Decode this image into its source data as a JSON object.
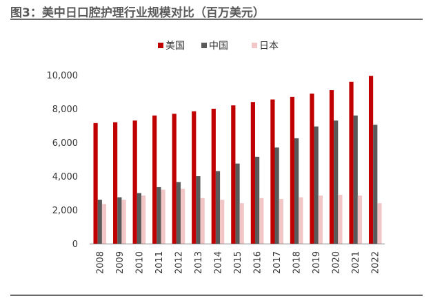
{
  "page": {
    "title": "图3：美中日口腔护理行业规模对比（百万美元）"
  },
  "colors": {
    "us": "#c00000",
    "china": "#595959",
    "japan": "#f2c6c6",
    "axis": "#7f7f7f"
  },
  "chart_data": {
    "type": "bar",
    "title": "图3：美中日口腔护理行业规模对比（百万美元）",
    "xlabel": "",
    "ylabel": "",
    "ylim": [
      0,
      10000
    ],
    "yticks": [
      0,
      2000,
      4000,
      6000,
      8000,
      10000
    ],
    "ytick_labels": [
      "0",
      "2,000",
      "4,000",
      "6,000",
      "8,000",
      "10,000"
    ],
    "legend_position": "top-center",
    "grid": false,
    "categories": [
      "2008",
      "2009",
      "2010",
      "2011",
      "2012",
      "2013",
      "2014",
      "2015",
      "2016",
      "2017",
      "2018",
      "2019",
      "2020",
      "2021",
      "2022"
    ],
    "series": [
      {
        "name": "美国",
        "color": "#c00000",
        "values": [
          7150,
          7200,
          7300,
          7600,
          7700,
          7850,
          8000,
          8200,
          8400,
          8550,
          8700,
          8900,
          9100,
          9600,
          9950
        ]
      },
      {
        "name": "中国",
        "color": "#595959",
        "values": [
          2600,
          2750,
          3000,
          3350,
          3650,
          4000,
          4300,
          4750,
          5150,
          5700,
          6250,
          6950,
          7300,
          7600,
          7050
        ]
      },
      {
        "name": "日本",
        "color": "#f2c6c6",
        "values": [
          2350,
          2600,
          2850,
          3200,
          3250,
          2700,
          2600,
          2400,
          2700,
          2650,
          2750,
          2850,
          2900,
          2850,
          2400
        ]
      }
    ]
  }
}
